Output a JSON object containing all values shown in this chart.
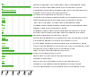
{
  "labels": [
    "Northumberland, Tyne and Wear NHS Foundation Trust",
    "South London and Maudsley NHS Foundation Trust",
    "Cambridgeshire and Peterborough NHS Foundation Trust",
    "Oxford Health NHS Foundation Trust",
    "Lancashire Care NHS Foundation Trust",
    "Avon and Wiltshire Mental Health Partnership NHS Trust",
    "Nottinghamshire Healthcare NHS Foundation Trust",
    "Tees, Esk and Wear Valleys NHS Foundation Trust",
    "Greater Manchester Mental Health NHS Foundation Trust",
    "Mersey Care NHS Foundation Trust",
    "Sheffield Health and Social Care NHS Foundation Trust",
    "Barnet, Enfield and Haringey Mental Health NHS Trust",
    "Pennine Care NHS Foundation Trust",
    "South Essex Partnership University NHS Foundation Trust",
    "5 Boroughs Partnership NHS Foundation Trust",
    "South West Yorkshire Partnership NHS Foundation Trust",
    "Hertfordshire Partnership University NHS Foundation Trust",
    "Berkshire Healthcare NHS Foundation Trust",
    "West London Mental Health NHS Trust",
    "Devon Partnership NHS Trust",
    "North East London NHS Foundation Trust",
    "Livewell Southwest",
    "Black Country Partnership NHS Foundation Trust",
    "Coventry and Warwickshire Partnership NHS Trust",
    "Surrey and Borders Partnership NHS Foundation Trust"
  ],
  "target_vals": [
    11,
    100,
    52,
    52,
    106,
    13,
    13,
    15,
    13,
    13,
    8,
    8,
    107,
    13,
    23,
    13,
    13,
    25,
    44,
    107,
    13,
    12,
    12,
    12,
    41
  ],
  "actual_vals": [
    4,
    100,
    4,
    52,
    106,
    3,
    3,
    15,
    4,
    3,
    3,
    8,
    107,
    3,
    23,
    3,
    3,
    25,
    44,
    107,
    3,
    3,
    3,
    12,
    41
  ],
  "color_dark": "#3a9e3a",
  "color_light": "#7dcf5a",
  "max_val": 110,
  "xticks": [
    0,
    20,
    40,
    60,
    80,
    100
  ],
  "background": "#ffffff"
}
